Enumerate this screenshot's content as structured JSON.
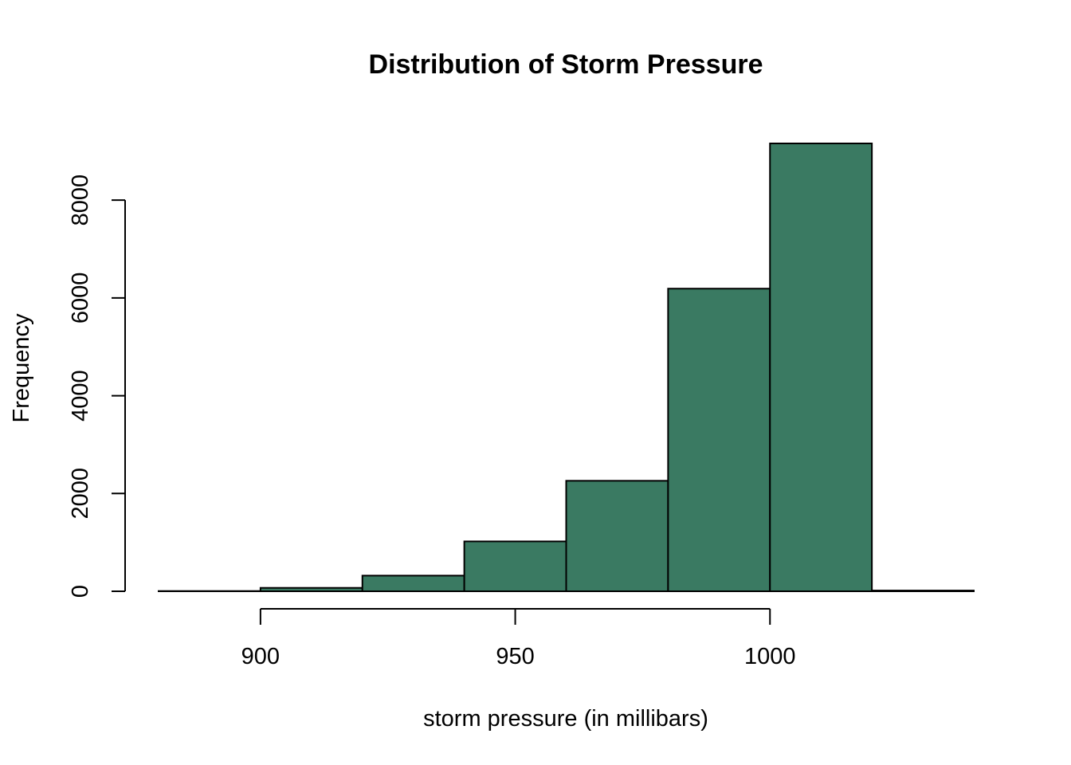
{
  "chart_data": {
    "type": "bar",
    "title": "Distribution of Storm Pressure",
    "xlabel": "storm pressure (in millibars)",
    "ylabel": "Frequency",
    "bins": [
      {
        "from": 880,
        "to": 900,
        "value": 5
      },
      {
        "from": 900,
        "to": 920,
        "value": 70
      },
      {
        "from": 920,
        "to": 940,
        "value": 320
      },
      {
        "from": 940,
        "to": 960,
        "value": 1020
      },
      {
        "from": 960,
        "to": 980,
        "value": 2260
      },
      {
        "from": 980,
        "to": 1000,
        "value": 6190
      },
      {
        "from": 1000,
        "to": 1020,
        "value": 9160
      },
      {
        "from": 1020,
        "to": 1040,
        "value": 15
      }
    ],
    "xlim": [
      880,
      1040
    ],
    "ylim": [
      0,
      9160
    ],
    "x_ticks": [
      900,
      950,
      1000
    ],
    "x_tick_labels": [
      "900",
      "950",
      "1000"
    ],
    "y_ticks": [
      0,
      2000,
      4000,
      6000,
      8000
    ],
    "y_tick_labels": [
      "0",
      "2000",
      "4000",
      "6000",
      "8000"
    ],
    "bar_color": "#3a7a62",
    "edge_color": "#000000",
    "grid": false,
    "legend": "none"
  }
}
